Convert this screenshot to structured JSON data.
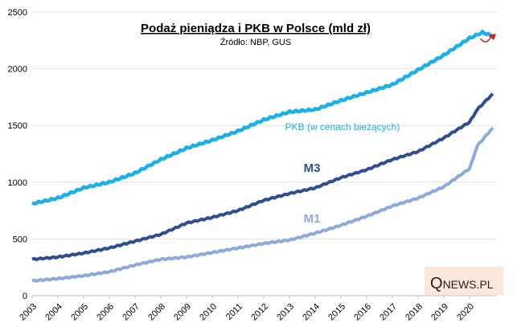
{
  "chart_data": {
    "type": "line",
    "title": "Podaż pieniądza i PKB w Polsce (mld zł)",
    "subtitle": "Źródło: NBP, GUS",
    "xlabel": "",
    "ylabel": "",
    "ylim": [
      0,
      2500
    ],
    "yticks": [
      "0",
      "500",
      "1000",
      "1500",
      "2000",
      "2500"
    ],
    "ytick_values": [
      0,
      500,
      1000,
      1500,
      2000,
      2500
    ],
    "xticks": [
      "2003",
      "2004",
      "2005",
      "2006",
      "2007",
      "2008",
      "2009",
      "2010",
      "2011",
      "2012",
      "2013",
      "2014",
      "2015",
      "2016",
      "2017",
      "2018",
      "2019",
      "2020"
    ],
    "grid": true,
    "series": [
      {
        "name": "PKB (w cenach bieżących)",
        "color": "#1ab0e8",
        "sawtooth": true,
        "x": [
          2003,
          2004,
          2005,
          2006,
          2007,
          2008,
          2009,
          2010,
          2011,
          2012,
          2013,
          2014,
          2015,
          2016,
          2017,
          2018,
          2019,
          2020,
          2020.5,
          2020.9
        ],
        "values": [
          810,
          860,
          950,
          1000,
          1080,
          1200,
          1300,
          1370,
          1450,
          1550,
          1620,
          1640,
          1720,
          1790,
          1860,
          1990,
          2120,
          2270,
          2320,
          2290
        ]
      },
      {
        "name": "M3",
        "color": "#2e4f8f",
        "x": [
          2003,
          2004,
          2005,
          2006,
          2007,
          2008,
          2009,
          2010,
          2011,
          2012,
          2013,
          2014,
          2015,
          2016,
          2017,
          2018,
          2019,
          2020,
          2020.3,
          2020.9
        ],
        "values": [
          320,
          340,
          375,
          420,
          480,
          540,
          640,
          690,
          750,
          840,
          900,
          950,
          1040,
          1110,
          1200,
          1270,
          1390,
          1530,
          1640,
          1780
        ]
      },
      {
        "name": "M1",
        "color": "#8ea9db",
        "x": [
          2003,
          2004,
          2005,
          2006,
          2007,
          2008,
          2009,
          2010,
          2011,
          2012,
          2013,
          2014,
          2015,
          2016,
          2017,
          2018,
          2019,
          2020,
          2020.3,
          2020.9
        ],
        "values": [
          130,
          150,
          175,
          210,
          270,
          320,
          340,
          380,
          420,
          460,
          490,
          550,
          620,
          700,
          790,
          860,
          960,
          1120,
          1320,
          1480
        ]
      }
    ],
    "brand": "QNEWS.PL",
    "brand_q": "Q",
    "brand_rest": "NEWS.PL"
  }
}
